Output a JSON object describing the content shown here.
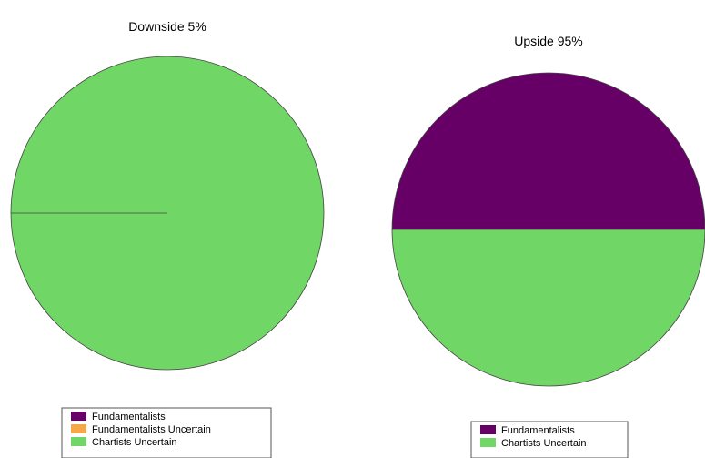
{
  "chart_data": [
    {
      "type": "pie",
      "title": "Downside 5%",
      "slices": [
        {
          "label": "Fundamentalists",
          "value": 0,
          "color": "#660066"
        },
        {
          "label": "Fundamentalists Uncertain",
          "value": 0,
          "color": "#f5a84a"
        },
        {
          "label": "Chartists Uncertain",
          "value": 100,
          "color": "#70d665"
        }
      ],
      "legend": [
        "Fundamentalists",
        "Fundamentalists Uncertain",
        "Chartists Uncertain"
      ],
      "legend_placement": "bottom"
    },
    {
      "type": "pie",
      "title": "Upside 95%",
      "slices": [
        {
          "label": "Fundamentalists",
          "value": 50,
          "color": "#660066"
        },
        {
          "label": "Chartists Uncertain",
          "value": 50,
          "color": "#70d665"
        }
      ],
      "legend": [
        "Fundamentalists",
        "Chartists Uncertain"
      ],
      "legend_placement": "bottom"
    }
  ]
}
